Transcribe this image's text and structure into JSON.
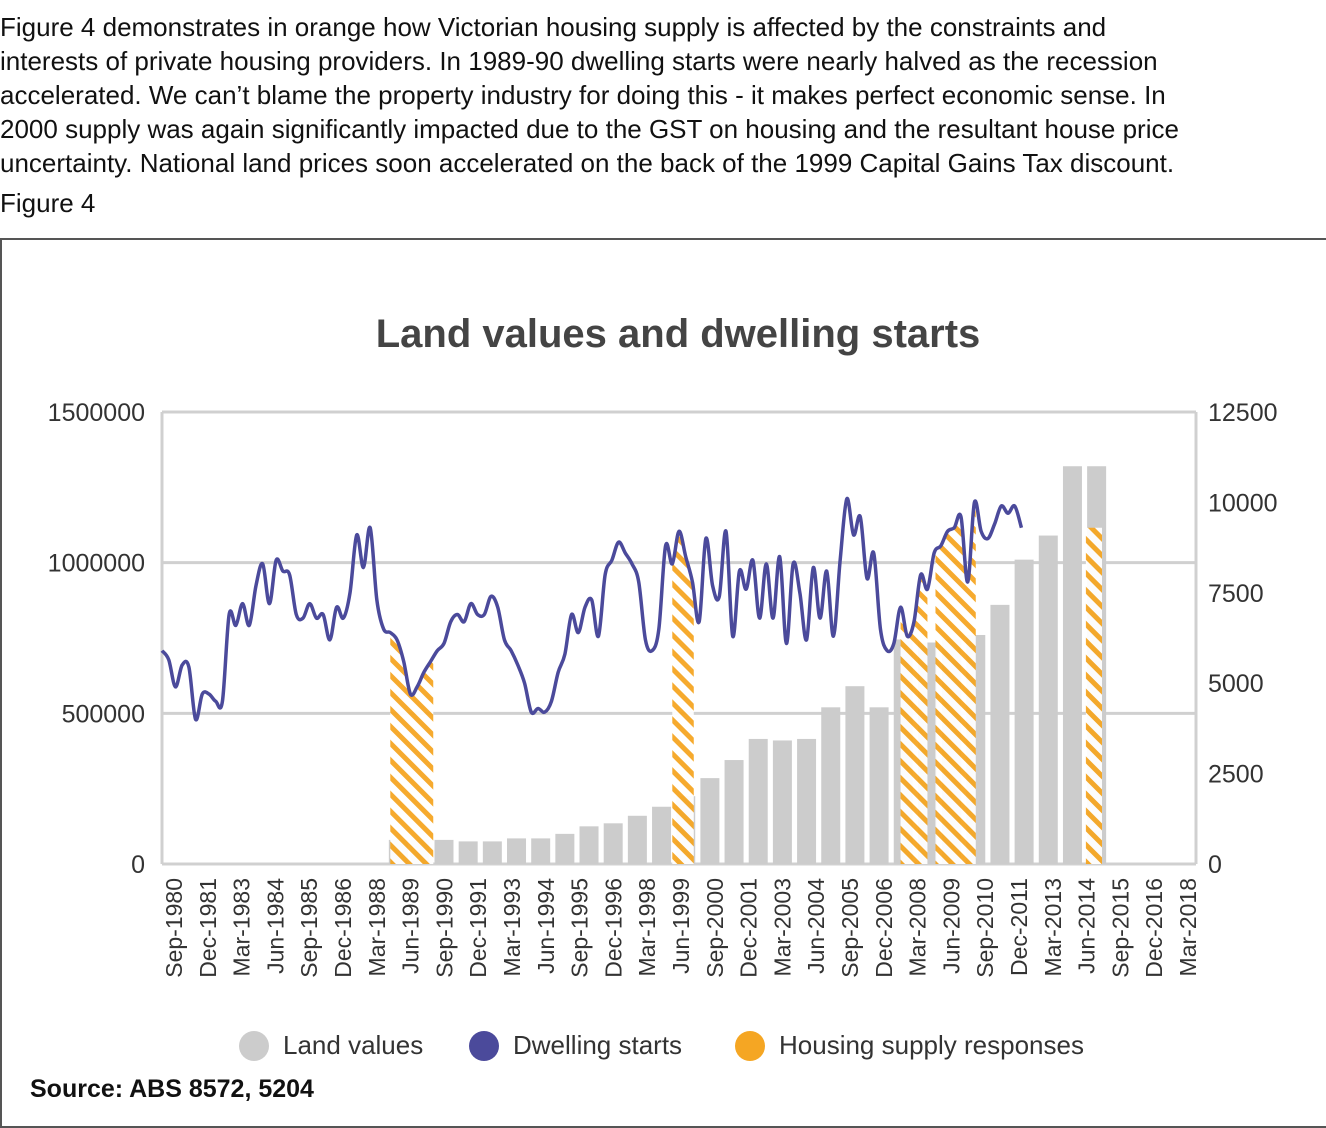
{
  "intro": {
    "line1": "Figure 4 demonstrates in orange how Victorian housing supply is affected by the constraints and",
    "line2": "interests of private housing providers. In 1989-90 dwelling starts were nearly halved as the recession",
    "line3": "accelerated. We can’t blame the property industry for doing this - it makes perfect economic sense. In",
    "line4": "2000 supply was again significantly impacted due to the GST on housing and the resultant house price",
    "line5": "uncertainty. National land prices soon accelerated on the back of the 1999 Capital Gains Tax discount."
  },
  "figure_label": "Figure 4",
  "source": "Source:  ABS 8572, 5204",
  "colors": {
    "land": "#cccccc",
    "dwelling": "#4b4a9b",
    "supply": "#f5a623",
    "grid": "#d0d0d0",
    "axis_text": "#333333"
  },
  "chart_data": {
    "type": "bar+line",
    "title": "Land values and dwelling starts",
    "y_left": {
      "ticks": [
        "0",
        "500000",
        "1000000",
        "1500000"
      ],
      "range": [
        0,
        1500000
      ]
    },
    "y_right": {
      "ticks": [
        "0",
        "2500",
        "5000",
        "7500",
        "10000",
        "12500"
      ],
      "range": [
        0,
        12500
      ]
    },
    "x_tick_labels": [
      "Sep-1980",
      "Dec-1981",
      "Mar-1983",
      "Jun-1984",
      "Sep-1985",
      "Dec-1986",
      "Mar-1988",
      "Jun-1989",
      "Sep-1990",
      "Dec-1991",
      "Mar-1993",
      "Jun-1994",
      "Sep-1995",
      "Dec-1996",
      "Mar-1998",
      "Jun-1999",
      "Sep-2000",
      "Dec-2001",
      "Mar-2003",
      "Jun-2004",
      "Sep-2005",
      "Dec-2006",
      "Mar-2008",
      "Jun-2009",
      "Sep-2010",
      "Dec-2011",
      "Mar-2013",
      "Jun-2014",
      "Sep-2015",
      "Dec-2016",
      "Mar-2018"
    ],
    "x_range": [
      1980.5,
      2019.0
    ],
    "legend": [
      {
        "name": "Land values",
        "color": "#cccccc"
      },
      {
        "name": "Dwelling starts",
        "color": "#4b4a9b"
      },
      {
        "name": "Housing supply responses",
        "color": "#f5a623"
      }
    ],
    "legend_position": "bottom",
    "land_values": [
      {
        "x": 1989.3,
        "value": 80000
      },
      {
        "x": 1990.1,
        "value": 80000
      },
      {
        "x": 1991.0,
        "value": 80000
      },
      {
        "x": 1991.9,
        "value": 75000
      },
      {
        "x": 1992.8,
        "value": 75000
      },
      {
        "x": 1993.7,
        "value": 85000
      },
      {
        "x": 1994.6,
        "value": 85000
      },
      {
        "x": 1995.5,
        "value": 100000
      },
      {
        "x": 1996.4,
        "value": 125000
      },
      {
        "x": 1997.3,
        "value": 135000
      },
      {
        "x": 1998.2,
        "value": 160000
      },
      {
        "x": 1999.1,
        "value": 190000
      },
      {
        "x": 2000.0,
        "value": 225000
      },
      {
        "x": 2000.9,
        "value": 285000
      },
      {
        "x": 2001.8,
        "value": 345000
      },
      {
        "x": 2002.7,
        "value": 415000
      },
      {
        "x": 2003.6,
        "value": 410000
      },
      {
        "x": 2004.5,
        "value": 415000
      },
      {
        "x": 2005.4,
        "value": 520000
      },
      {
        "x": 2006.3,
        "value": 590000
      },
      {
        "x": 2007.2,
        "value": 520000
      },
      {
        "x": 2008.1,
        "value": 745000
      },
      {
        "x": 2009.0,
        "value": 735000
      },
      {
        "x": 2009.9,
        "value": 745000
      },
      {
        "x": 2010.8,
        "value": 760000
      },
      {
        "x": 2011.7,
        "value": 860000
      },
      {
        "x": 2012.6,
        "value": 1010000
      },
      {
        "x": 2013.5,
        "value": 1090000
      },
      {
        "x": 2014.4,
        "value": 1320000
      },
      {
        "x": 2015.3,
        "value": 1320000
      }
    ],
    "dwelling_starts": [
      {
        "x": 1980.5,
        "y": 5900
      },
      {
        "x": 1980.75,
        "y": 5650
      },
      {
        "x": 1981.0,
        "y": 4900
      },
      {
        "x": 1981.25,
        "y": 5500
      },
      {
        "x": 1981.5,
        "y": 5450
      },
      {
        "x": 1981.75,
        "y": 4000
      },
      {
        "x": 1982.0,
        "y": 4700
      },
      {
        "x": 1982.25,
        "y": 4700
      },
      {
        "x": 1982.5,
        "y": 4500
      },
      {
        "x": 1982.75,
        "y": 4500
      },
      {
        "x": 1983.0,
        "y": 6900
      },
      {
        "x": 1983.25,
        "y": 6600
      },
      {
        "x": 1983.5,
        "y": 7200
      },
      {
        "x": 1983.75,
        "y": 6600
      },
      {
        "x": 1984.0,
        "y": 7700
      },
      {
        "x": 1984.25,
        "y": 8300
      },
      {
        "x": 1984.5,
        "y": 7200
      },
      {
        "x": 1984.75,
        "y": 8400
      },
      {
        "x": 1985.0,
        "y": 8100
      },
      {
        "x": 1985.25,
        "y": 8000
      },
      {
        "x": 1985.5,
        "y": 6900
      },
      {
        "x": 1985.75,
        "y": 6800
      },
      {
        "x": 1986.0,
        "y": 7200
      },
      {
        "x": 1986.25,
        "y": 6800
      },
      {
        "x": 1986.5,
        "y": 6900
      },
      {
        "x": 1986.75,
        "y": 6200
      },
      {
        "x": 1987.0,
        "y": 7100
      },
      {
        "x": 1987.25,
        "y": 6800
      },
      {
        "x": 1987.5,
        "y": 7500
      },
      {
        "x": 1987.75,
        "y": 9100
      },
      {
        "x": 1988.0,
        "y": 8200
      },
      {
        "x": 1988.25,
        "y": 9300
      },
      {
        "x": 1988.5,
        "y": 7300
      },
      {
        "x": 1988.75,
        "y": 6500
      },
      {
        "x": 1989.0,
        "y": 6400
      },
      {
        "x": 1989.25,
        "y": 6200
      },
      {
        "x": 1989.5,
        "y": 5600
      },
      {
        "x": 1989.75,
        "y": 4700
      },
      {
        "x": 1990.0,
        "y": 4900
      },
      {
        "x": 1990.25,
        "y": 5300
      },
      {
        "x": 1990.5,
        "y": 5600
      },
      {
        "x": 1990.75,
        "y": 5900
      },
      {
        "x": 1991.0,
        "y": 6100
      },
      {
        "x": 1991.25,
        "y": 6700
      },
      {
        "x": 1991.5,
        "y": 6900
      },
      {
        "x": 1991.75,
        "y": 6700
      },
      {
        "x": 1992.0,
        "y": 7200
      },
      {
        "x": 1992.25,
        "y": 6900
      },
      {
        "x": 1992.5,
        "y": 6900
      },
      {
        "x": 1992.75,
        "y": 7400
      },
      {
        "x": 1993.0,
        "y": 7100
      },
      {
        "x": 1993.25,
        "y": 6200
      },
      {
        "x": 1993.5,
        "y": 5900
      },
      {
        "x": 1993.75,
        "y": 5500
      },
      {
        "x": 1994.0,
        "y": 5000
      },
      {
        "x": 1994.25,
        "y": 4200
      },
      {
        "x": 1994.5,
        "y": 4300
      },
      {
        "x": 1994.75,
        "y": 4200
      },
      {
        "x": 1995.0,
        "y": 4500
      },
      {
        "x": 1995.25,
        "y": 5300
      },
      {
        "x": 1995.5,
        "y": 5800
      },
      {
        "x": 1995.75,
        "y": 6900
      },
      {
        "x": 1996.0,
        "y": 6400
      },
      {
        "x": 1996.25,
        "y": 7100
      },
      {
        "x": 1996.5,
        "y": 7300
      },
      {
        "x": 1996.75,
        "y": 6300
      },
      {
        "x": 1997.0,
        "y": 8000
      },
      {
        "x": 1997.25,
        "y": 8400
      },
      {
        "x": 1997.5,
        "y": 8900
      },
      {
        "x": 1997.75,
        "y": 8600
      },
      {
        "x": 1998.0,
        "y": 8300
      },
      {
        "x": 1998.25,
        "y": 7800
      },
      {
        "x": 1998.5,
        "y": 6200
      },
      {
        "x": 1998.75,
        "y": 5900
      },
      {
        "x": 1999.0,
        "y": 6500
      },
      {
        "x": 1999.25,
        "y": 8800
      },
      {
        "x": 1999.5,
        "y": 8300
      },
      {
        "x": 1999.75,
        "y": 9200
      },
      {
        "x": 2000.0,
        "y": 8500
      },
      {
        "x": 2000.25,
        "y": 7800
      },
      {
        "x": 2000.5,
        "y": 6700
      },
      {
        "x": 2000.75,
        "y": 9000
      },
      {
        "x": 2001.0,
        "y": 7700
      },
      {
        "x": 2001.25,
        "y": 7400
      },
      {
        "x": 2001.5,
        "y": 9200
      },
      {
        "x": 2001.75,
        "y": 6300
      },
      {
        "x": 2002.0,
        "y": 8100
      },
      {
        "x": 2002.25,
        "y": 7600
      },
      {
        "x": 2002.5,
        "y": 8400
      },
      {
        "x": 2002.75,
        "y": 6800
      },
      {
        "x": 2003.0,
        "y": 8300
      },
      {
        "x": 2003.25,
        "y": 6800
      },
      {
        "x": 2003.5,
        "y": 8500
      },
      {
        "x": 2003.75,
        "y": 6100
      },
      {
        "x": 2004.0,
        "y": 8300
      },
      {
        "x": 2004.25,
        "y": 7500
      },
      {
        "x": 2004.5,
        "y": 6200
      },
      {
        "x": 2004.75,
        "y": 8200
      },
      {
        "x": 2005.0,
        "y": 6800
      },
      {
        "x": 2005.25,
        "y": 8100
      },
      {
        "x": 2005.5,
        "y": 6300
      },
      {
        "x": 2005.75,
        "y": 8400
      },
      {
        "x": 2006.0,
        "y": 10100
      },
      {
        "x": 2006.25,
        "y": 9100
      },
      {
        "x": 2006.5,
        "y": 9600
      },
      {
        "x": 2006.75,
        "y": 7900
      },
      {
        "x": 2007.0,
        "y": 8600
      },
      {
        "x": 2007.25,
        "y": 6500
      },
      {
        "x": 2007.5,
        "y": 5900
      },
      {
        "x": 2007.75,
        "y": 6100
      },
      {
        "x": 2008.0,
        "y": 7100
      },
      {
        "x": 2008.25,
        "y": 6300
      },
      {
        "x": 2008.5,
        "y": 6700
      },
      {
        "x": 2008.75,
        "y": 8000
      },
      {
        "x": 2009.0,
        "y": 7600
      },
      {
        "x": 2009.25,
        "y": 8600
      },
      {
        "x": 2009.5,
        "y": 8800
      },
      {
        "x": 2009.75,
        "y": 9200
      },
      {
        "x": 2010.0,
        "y": 9300
      },
      {
        "x": 2010.25,
        "y": 9600
      },
      {
        "x": 2010.5,
        "y": 7800
      },
      {
        "x": 2010.75,
        "y": 10000
      },
      {
        "x": 2011.0,
        "y": 9200
      },
      {
        "x": 2011.25,
        "y": 9000
      },
      {
        "x": 2011.5,
        "y": 9400
      },
      {
        "x": 2011.75,
        "y": 9900
      },
      {
        "x": 2012.0,
        "y": 9700
      },
      {
        "x": 2012.25,
        "y": 9900
      },
      {
        "x": 2012.5,
        "y": 9300
      }
    ],
    "supply_responses": [
      {
        "x0": 1989.0,
        "x1": 1990.6
      },
      {
        "x0": 1999.5,
        "x1": 2000.3
      },
      {
        "x0": 2008.0,
        "x1": 2009.0
      },
      {
        "x0": 2009.3,
        "x1": 2010.8
      },
      {
        "x0": 2014.9,
        "x1": 2015.5
      }
    ]
  }
}
